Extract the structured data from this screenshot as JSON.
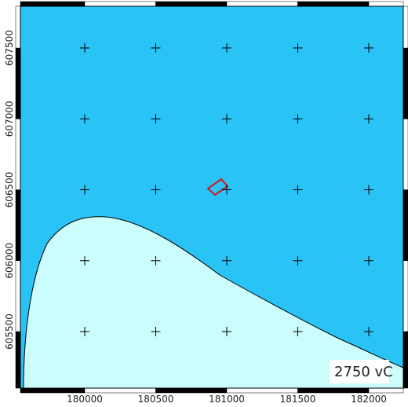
{
  "map": {
    "xlim": [
      179547,
      182243
    ],
    "ylim": [
      605101,
      607794
    ],
    "xticks": [
      180000,
      180500,
      181000,
      181500,
      182000
    ],
    "yticks": [
      605500,
      606000,
      606500,
      607000,
      607500
    ],
    "label": "2750 vC"
  }
}
